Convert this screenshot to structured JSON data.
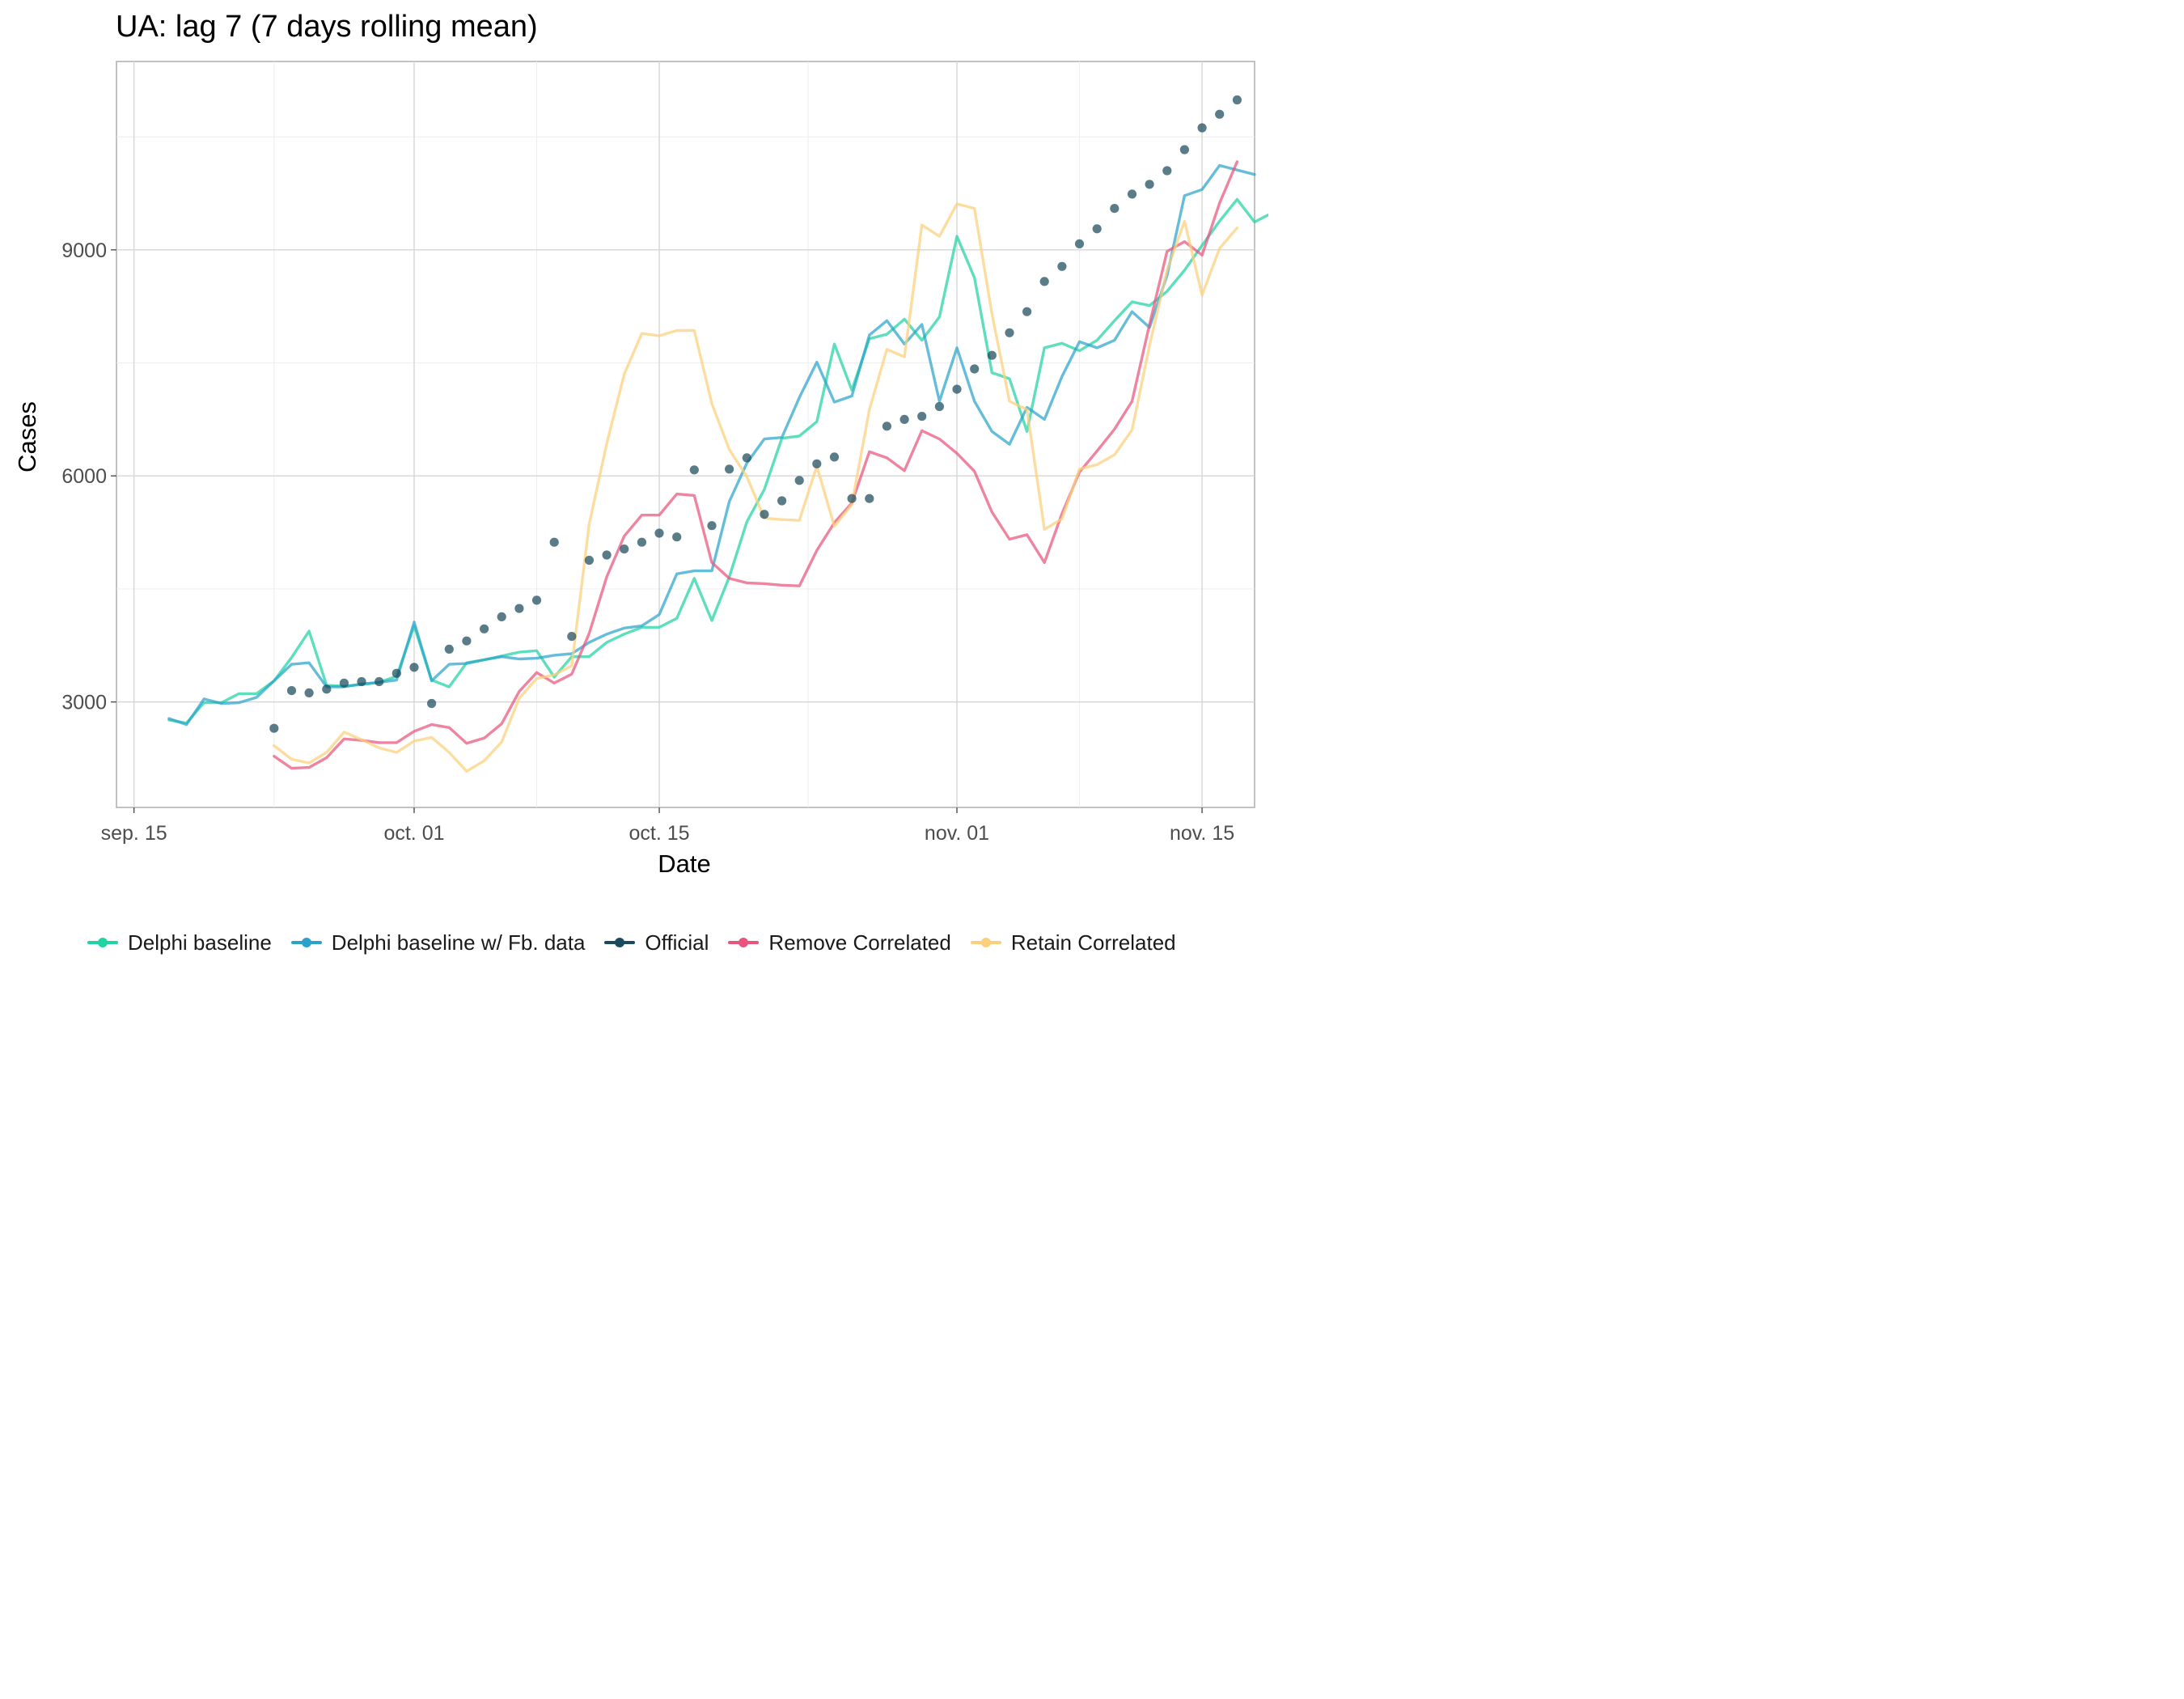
{
  "chart_data": {
    "type": "line",
    "title": "UA: lag 7 (7 days rolling mean)",
    "xlabel": "Date",
    "ylabel": "Cases",
    "x_start": "2020-09-17",
    "xlim": [
      "2020-09-14",
      "2020-11-18"
    ],
    "ylim": [
      1600,
      11500
    ],
    "x_ticks": [
      {
        "date": "2020-09-15",
        "label": "sep. 15"
      },
      {
        "date": "2020-10-01",
        "label": "oct. 01"
      },
      {
        "date": "2020-10-15",
        "label": "oct. 15"
      },
      {
        "date": "2020-11-01",
        "label": "nov. 01"
      },
      {
        "date": "2020-11-15",
        "label": "nov. 15"
      }
    ],
    "y_ticks": [
      3000,
      6000,
      9000
    ],
    "y_minor_ticks": [
      1500,
      4500,
      7500,
      10500
    ],
    "grid": true,
    "legend_position": "bottom",
    "series": [
      {
        "name": "Delphi baseline",
        "color": "#1fd3a3",
        "marker": "line",
        "start": "2020-09-17",
        "values": [
          2760,
          2720,
          2990,
          2990,
          3110,
          3110,
          3280,
          3590,
          3940,
          3220,
          3210,
          3230,
          3260,
          3340,
          4010,
          3290,
          3200,
          3520,
          3560,
          3610,
          3660,
          3680,
          3330,
          3600,
          3600,
          3790,
          3900,
          3990,
          3990,
          4110,
          4640,
          4080,
          4660,
          5390,
          5820,
          6500,
          6530,
          6720,
          7750,
          7140,
          7820,
          7880,
          8080,
          7800,
          8110,
          9180,
          8630,
          7370,
          7290,
          6590,
          7700,
          7760,
          7660,
          7800,
          8060,
          8310,
          8260,
          8450,
          8730,
          9060,
          9380,
          9670,
          9370,
          9490
        ]
      },
      {
        "name": "Delphi baseline w/ Fb. data",
        "color": "#2aa3cb",
        "marker": "line",
        "start": "2020-09-17",
        "values": [
          2780,
          2700,
          3040,
          2980,
          2990,
          3060,
          3280,
          3500,
          3520,
          3200,
          3200,
          3240,
          3260,
          3290,
          4060,
          3280,
          3500,
          3510,
          3560,
          3600,
          3570,
          3580,
          3620,
          3640,
          3790,
          3900,
          3980,
          4010,
          4160,
          4700,
          4740,
          4740,
          5660,
          6170,
          6490,
          6510,
          7040,
          7510,
          6980,
          7060,
          7870,
          8060,
          7750,
          8010,
          6990,
          7700,
          6990,
          6590,
          6420,
          6910,
          6750,
          7320,
          7780,
          7700,
          7800,
          8180,
          7970,
          8660,
          9720,
          9800,
          10120,
          10060,
          10000,
          null
        ]
      },
      {
        "name": "Official",
        "color": "#1b4a5c",
        "marker": "point",
        "start": "2020-09-23",
        "values": [
          2650,
          3150,
          3120,
          3170,
          3250,
          3270,
          3270,
          3380,
          3460,
          2980,
          3700,
          3810,
          3970,
          4130,
          4240,
          4350,
          5120,
          3870,
          4880,
          4950,
          5030,
          5120,
          5240,
          5190,
          6080,
          5340,
          6090,
          6240,
          5490,
          5670,
          5940,
          6160,
          6250,
          5700,
          5700,
          6660,
          6750,
          6790,
          6920,
          7150,
          7420,
          7600,
          7900,
          8180,
          8580,
          8780,
          9080,
          9280,
          9550,
          9740,
          9870,
          10050,
          10330,
          10620,
          10800,
          10990
        ]
      },
      {
        "name": "Remove Correlated",
        "color": "#e8547c",
        "marker": "line",
        "start": "2020-09-23",
        "values": [
          2280,
          2120,
          2130,
          2260,
          2510,
          2490,
          2460,
          2460,
          2610,
          2700,
          2660,
          2450,
          2520,
          2710,
          3140,
          3390,
          3250,
          3370,
          3910,
          4660,
          5200,
          5480,
          5480,
          5760,
          5740,
          4850,
          4640,
          4580,
          4570,
          4550,
          4540,
          5010,
          5380,
          5640,
          6320,
          6240,
          6070,
          6600,
          6490,
          6300,
          6060,
          5520,
          5160,
          5220,
          4850,
          5500,
          6050,
          6330,
          6620,
          6990,
          8010,
          8980,
          9110,
          8930,
          9620,
          10170
        ]
      },
      {
        "name": "Retain Correlated",
        "color": "#fcd07a",
        "marker": "line",
        "start": "2020-09-23",
        "values": [
          2420,
          2240,
          2190,
          2330,
          2600,
          2500,
          2390,
          2330,
          2480,
          2530,
          2330,
          2080,
          2220,
          2470,
          3050,
          3310,
          3360,
          3480,
          5360,
          6430,
          7350,
          7890,
          7860,
          7930,
          7930,
          6960,
          6350,
          5990,
          5440,
          5420,
          5410,
          6130,
          5330,
          5620,
          6880,
          7680,
          7580,
          9330,
          9180,
          9610,
          9550,
          8150,
          6990,
          6880,
          5290,
          5430,
          6090,
          6150,
          6280,
          6610,
          7730,
          8730,
          9380,
          8400,
          9020,
          9290
        ]
      }
    ]
  }
}
